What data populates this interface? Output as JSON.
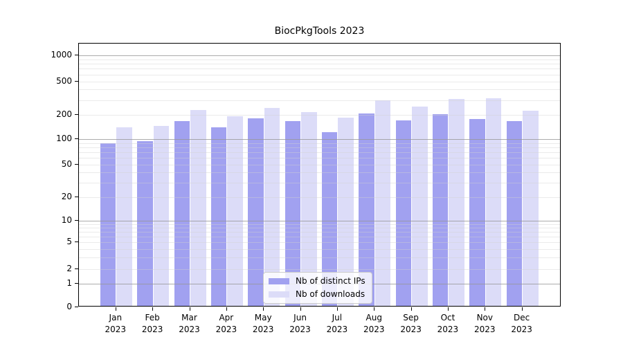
{
  "title": "BiocPkgTools 2023",
  "chart_data": {
    "type": "bar",
    "title": "BiocPkgTools 2023",
    "categories": [
      "Jan",
      "Feb",
      "Mar",
      "Apr",
      "May",
      "Jun",
      "Jul",
      "Aug",
      "Sep",
      "Oct",
      "Nov",
      "Dec"
    ],
    "xtick_second_line": "2023",
    "series": [
      {
        "name": "Nb of distinct IPs",
        "color": "#a1a1f0",
        "values": [
          90,
          94,
          166,
          140,
          182,
          166,
          121,
          209,
          171,
          202,
          176,
          169
        ]
      },
      {
        "name": "Nb of downloads",
        "color": "#dcdcf8",
        "values": [
          140,
          145,
          228,
          193,
          242,
          217,
          184,
          300,
          249,
          310,
          316,
          226
        ]
      }
    ],
    "xlabel": "",
    "ylabel": "",
    "yticks": [
      0,
      1,
      2,
      5,
      10,
      20,
      50,
      100,
      200,
      500,
      1000
    ],
    "scale": "symlog (logarithmic above 1, compressed linear near 0)",
    "ylim": [
      0,
      1380
    ],
    "grid": "both (light minor gridlines, darker major gridlines at 1, 10, 100, 1000, drawn over bars)",
    "legend_position": "lower center"
  }
}
